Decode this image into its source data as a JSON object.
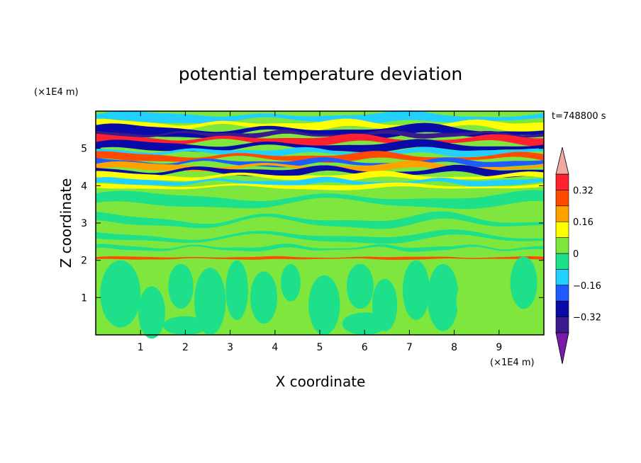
{
  "chart_data": {
    "type": "heatmap",
    "title": "potential temperature deviation",
    "xlabel": "X coordinate",
    "ylabel": "Z coordinate",
    "x_unit": "(×1E4 m)",
    "y_unit": "(×1E4 m)",
    "time_label": "t=748800 s",
    "xlim": [
      0,
      10
    ],
    "ylim": [
      0,
      6
    ],
    "x_ticks": [
      "1",
      "2",
      "3",
      "4",
      "5",
      "6",
      "7",
      "8",
      "9"
    ],
    "y_ticks": [
      "1",
      "2",
      "3",
      "4",
      "5"
    ],
    "colorbar": {
      "tick_labels": [
        "0.32",
        "0.16",
        "0",
        "−0.16",
        "−0.32"
      ],
      "tick_values": [
        0.32,
        0.16,
        0,
        -0.16,
        -0.32
      ],
      "levels": [
        -0.4,
        -0.32,
        -0.24,
        -0.16,
        -0.08,
        0,
        0.08,
        0.16,
        0.24,
        0.32,
        0.4
      ],
      "colors": [
        "#7a1aa8",
        "#3a1a8c",
        "#0a0aa8",
        "#1e5cff",
        "#22d0ff",
        "#1ee08a",
        "#7ee63c",
        "#ffff00",
        "#ffa200",
        "#ff4a00",
        "#ff2030",
        "#f0a8a0"
      ],
      "extend": "both"
    }
  }
}
